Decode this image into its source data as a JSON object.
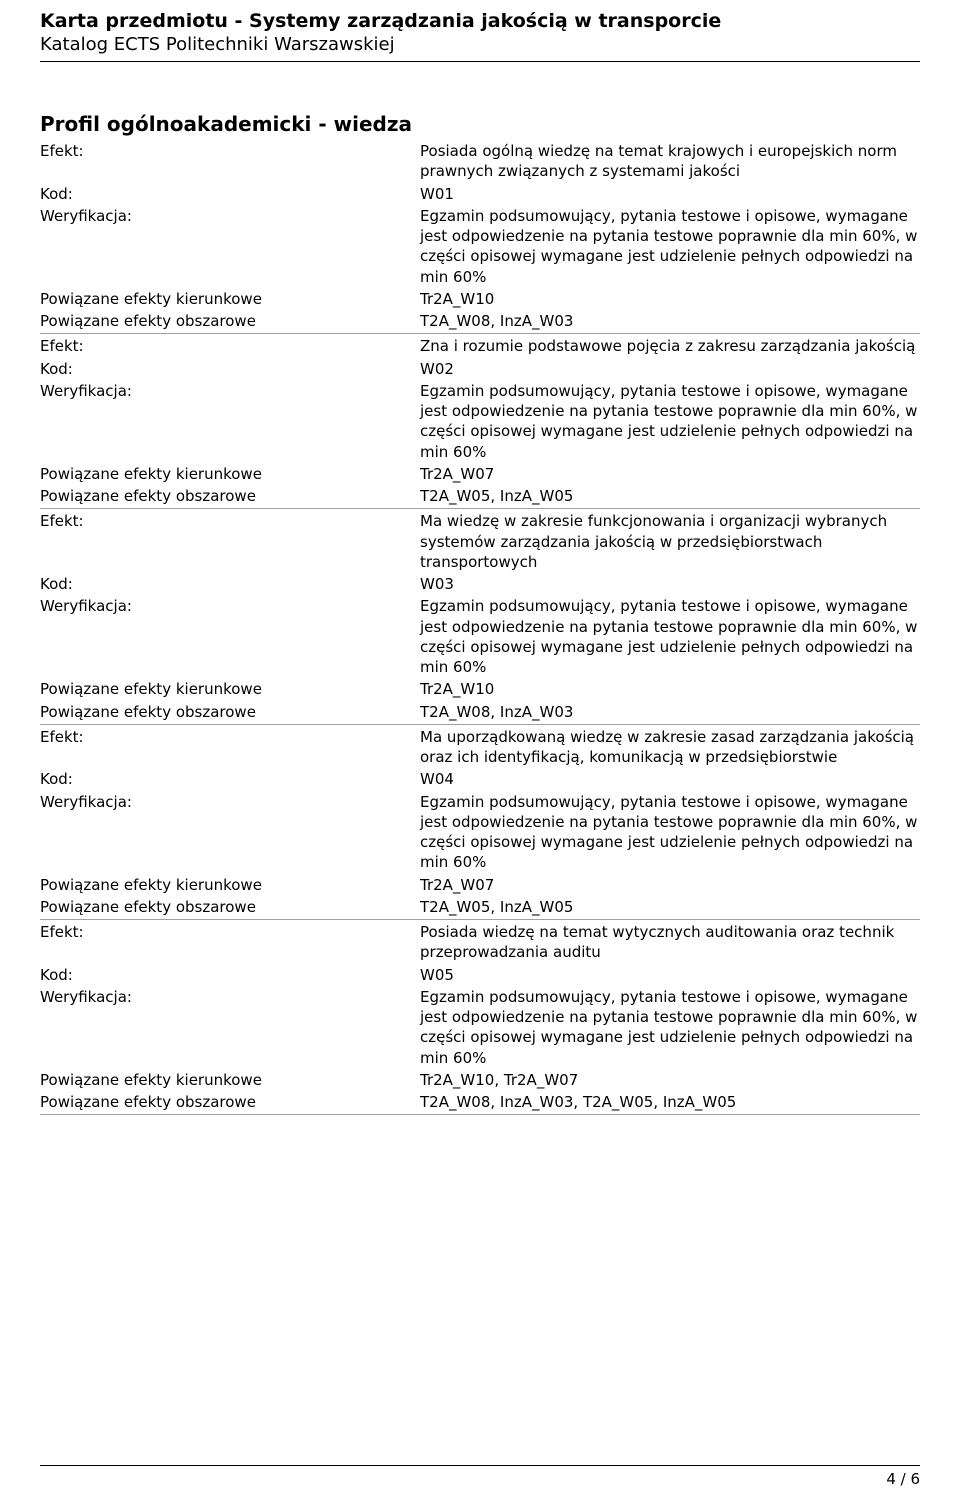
{
  "header": {
    "title": "Karta przedmiotu - Systemy zarządzania jakością w transporcie",
    "subtitle": "Katalog ECTS Politechniki Warszawskiej"
  },
  "section_heading": "Profil ogólnoakademicki - wiedza",
  "labels": {
    "efekt": "Efekt:",
    "kod": "Kod:",
    "weryf": "Weryfikacja:",
    "kier": "Powiązane efekty kierunkowe",
    "obsz": "Powiązane efekty obszarowe"
  },
  "verification_text": "Egzamin podsumowujący, pytania testowe i opisowe, wymagane jest odpowiedzenie na pytania testowe poprawnie dla min 60%, w części opisowej wymagane jest udzielenie pełnych odpowiedzi na min 60%",
  "effects": [
    {
      "efekt": "Posiada ogólną wiedzę na temat krajowych i europejskich norm prawnych związanych z systemami jakości",
      "kod": "W01",
      "kier": "Tr2A_W10",
      "obsz": "T2A_W08, InzA_W03"
    },
    {
      "efekt": "Zna i rozumie podstawowe pojęcia z zakresu zarządzania jakością",
      "kod": "W02",
      "kier": "Tr2A_W07",
      "obsz": "T2A_W05, InzA_W05"
    },
    {
      "efekt": "Ma wiedzę w zakresie funkcjonowania i organizacji wybranych systemów zarządzania jakością w przedsiębiorstwach transportowych",
      "kod": "W03",
      "kier": "Tr2A_W10",
      "obsz": "T2A_W08, InzA_W03"
    },
    {
      "efekt": "Ma uporządkowaną wiedzę w zakresie zasad zarządzania jakością oraz ich identyfikacją, komunikacją w przedsiębiorstwie",
      "kod": "W04",
      "kier": "Tr2A_W07",
      "obsz": "T2A_W05, InzA_W05"
    },
    {
      "efekt": "Posiada wiedzę na temat wytycznych auditowania oraz technik przeprowadzania auditu",
      "kod": "W05",
      "kier": "Tr2A_W10, Tr2A_W07",
      "obsz": "T2A_W08, InzA_W03, T2A_W05, InzA_W05"
    }
  ],
  "footer": "4 / 6"
}
